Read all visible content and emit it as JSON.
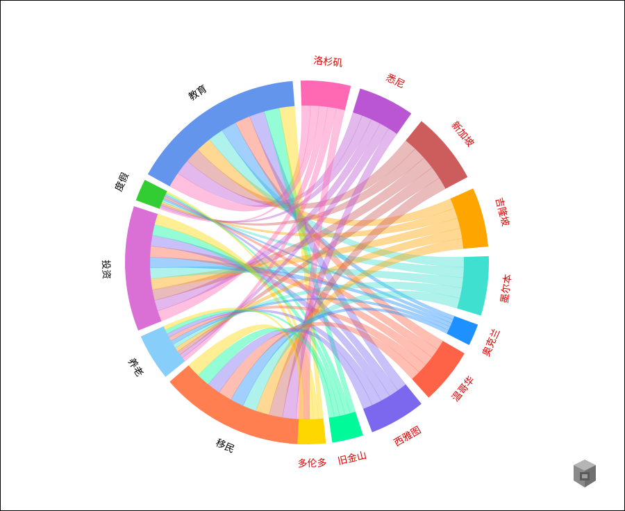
{
  "colors": {
    "left_label": "#000000",
    "right_label": "#e00000"
  },
  "left_nodes": [
    {
      "id": "jiaoyu",
      "label": "教育",
      "color": "#6495ed"
    },
    {
      "id": "dujia",
      "label": "度假",
      "color": "#32cd32"
    },
    {
      "id": "touzi",
      "label": "投资",
      "color": "#da70d6"
    },
    {
      "id": "yanglao",
      "label": "养老",
      "color": "#87cefa"
    },
    {
      "id": "yimin",
      "label": "移民",
      "color": "#ff7f50"
    }
  ],
  "right_nodes": [
    {
      "id": "luoshanji",
      "label": "洛杉矶",
      "color": "#ff69b4"
    },
    {
      "id": "xini",
      "label": "悉尼",
      "color": "#ba55d3"
    },
    {
      "id": "xinjiapo",
      "label": "新加坡",
      "color": "#cd5c5c"
    },
    {
      "id": "jilongpo",
      "label": "吉隆坡",
      "color": "#ffa500"
    },
    {
      "id": "moerben",
      "label": "墨尔本",
      "color": "#40e0d0"
    },
    {
      "id": "aokelan",
      "label": "奥克兰",
      "color": "#1e90ff"
    },
    {
      "id": "wengehua",
      "label": "温哥华",
      "color": "#ff6347"
    },
    {
      "id": "xiyatu",
      "label": "西雅图",
      "color": "#7b68ee"
    },
    {
      "id": "jiujinshan",
      "label": "旧金山",
      "color": "#00fa9a"
    },
    {
      "id": "duolunduo",
      "label": "多伦多",
      "color": "#ffd700"
    }
  ]
}
